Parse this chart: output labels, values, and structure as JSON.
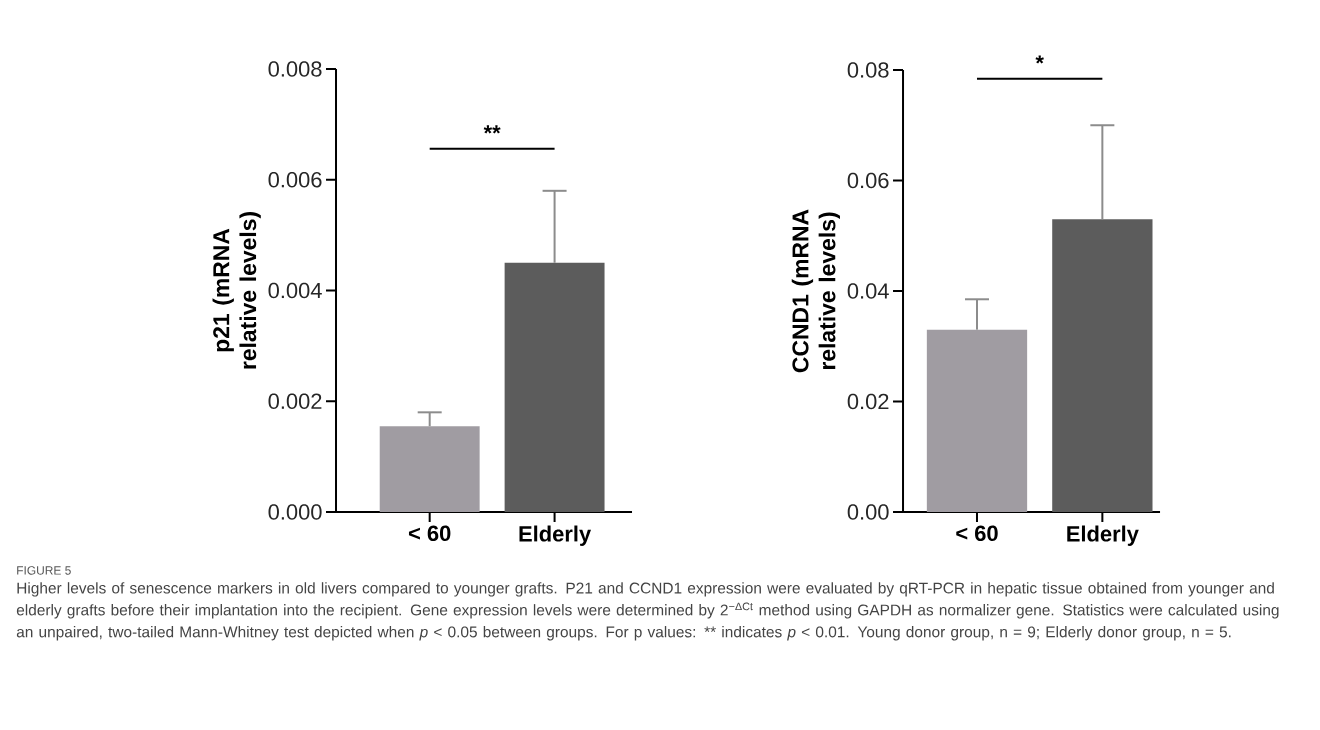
{
  "chart_data": [
    {
      "type": "bar",
      "ylabel": "p21 (mRNA relative levels)",
      "categories": [
        "< 60",
        "Elderly"
      ],
      "values": [
        0.00155,
        0.0045
      ],
      "colors": [
        "#a09ca2",
        "#5c5c5c"
      ],
      "errors": [
        [
          0.00155,
          0.0018
        ],
        [
          0.0045,
          0.0058
        ]
      ],
      "ylim": [
        0,
        0.008
      ],
      "yticks": [
        {
          "value": 0,
          "label": "0.000"
        },
        {
          "value": 0.002,
          "label": "0.002"
        },
        {
          "value": 0.004,
          "label": "0.004"
        },
        {
          "value": 0.006,
          "label": "0.006"
        },
        {
          "value": 0.008,
          "label": "0.008"
        }
      ],
      "annotations": [
        "**"
      ]
    },
    {
      "type": "bar",
      "ylabel": "CCND1 (mRNA relative levels)",
      "categories": [
        "< 60",
        "Elderly"
      ],
      "values": [
        0.033,
        0.053
      ],
      "colors": [
        "#a09ca2",
        "#5c5c5c"
      ],
      "errors": [
        [
          0.033,
          0.0385
        ],
        [
          0.053,
          0.07
        ]
      ],
      "ylim": [
        0,
        0.08
      ],
      "yticks": [
        {
          "value": 0,
          "label": "0.00"
        },
        {
          "value": 0.02,
          "label": "0.02"
        },
        {
          "value": 0.04,
          "label": "0.04"
        },
        {
          "value": 0.06,
          "label": "0.06"
        },
        {
          "value": 0.08,
          "label": "0.08"
        }
      ],
      "annotations": [
        "*"
      ]
    },
    {
      "type": "other",
      "title": "FIGURE 5",
      "annotations": [
        "Higher levels of senescence markers in old livers compared to younger grafts. P21 and CCND1 expression were evaluated by qRT-PCR in hepatic tissue obtained from younger and elderly grafts before their implantation into the recipient. Gene expression levels were determined by 2$^{−ΔCt}$ method using GAPDH as normalizer gene. Statistics were calculated using an unpaired, two-tailed Mann-Whitney test depicted when *p* < 0.05 between groups. For p values: ** indicates *p* < 0.01. Young donor group, n = 9; Elderly donor group, n = 5."
      ]
    }
  ]
}
